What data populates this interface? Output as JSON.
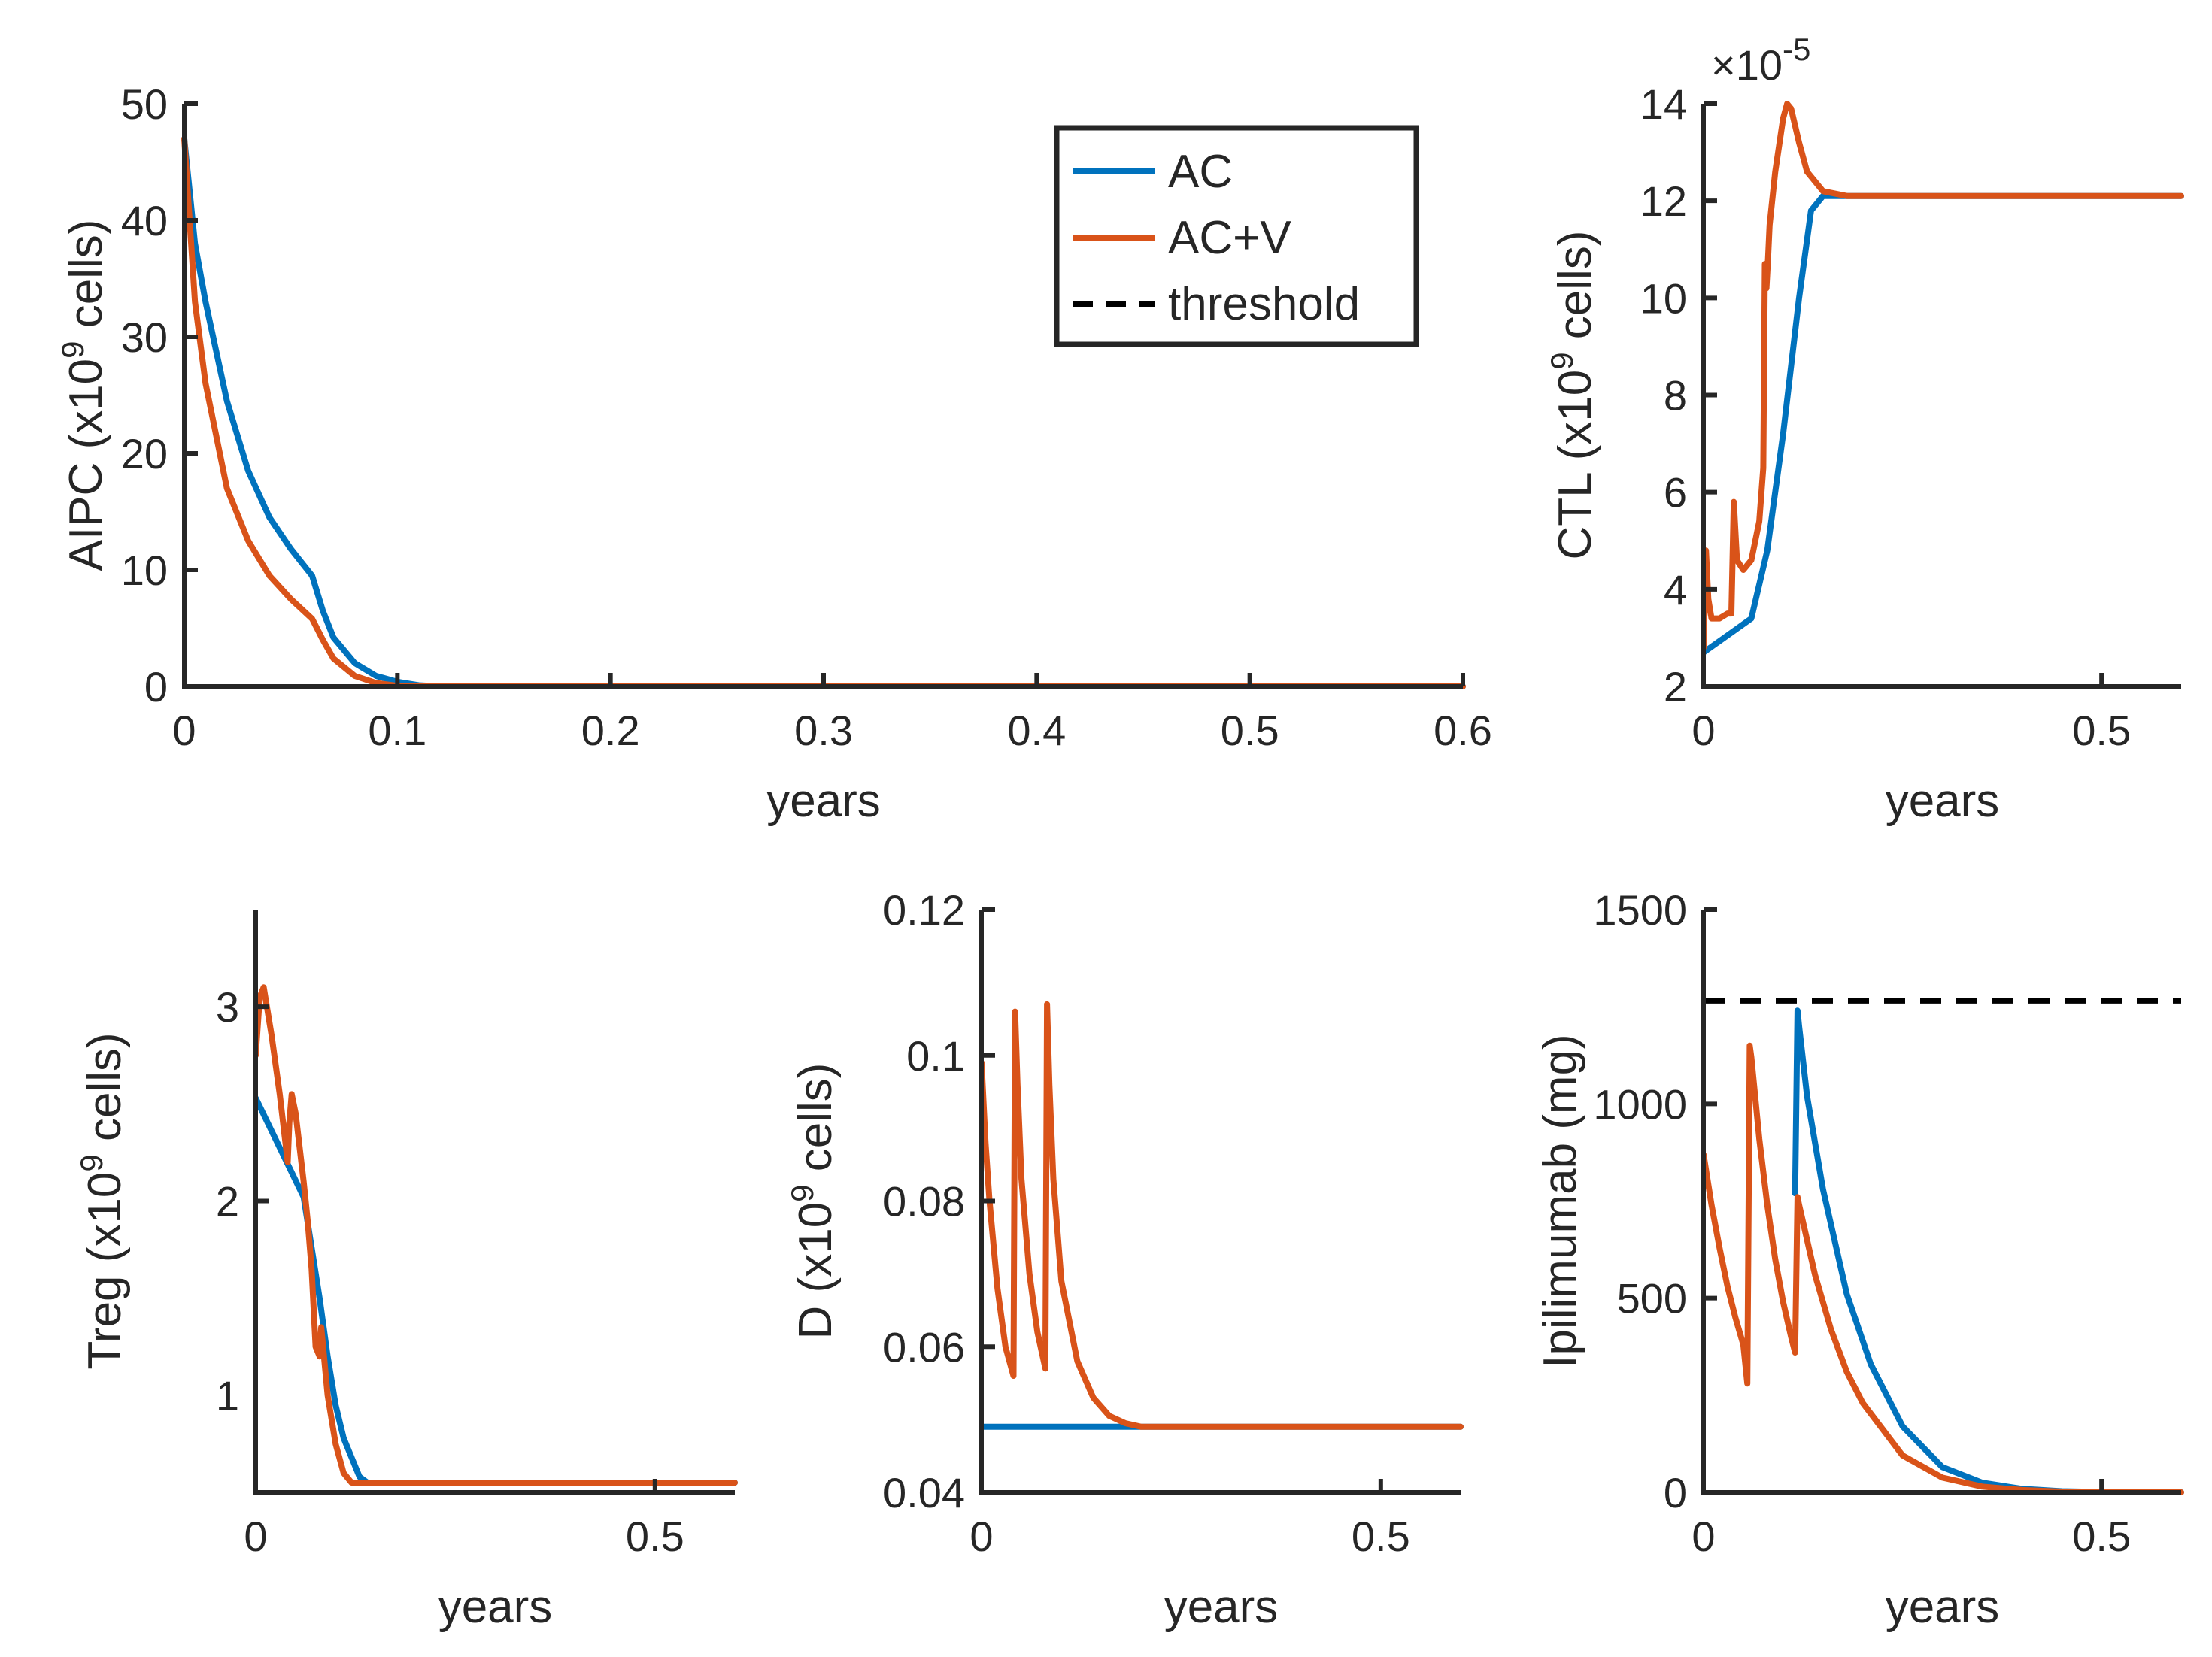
{
  "colors": {
    "ac": "#0072BD",
    "acv": "#D95319",
    "threshold": "#000000",
    "axis": "#262626"
  },
  "legend": {
    "items": [
      {
        "label": "AC",
        "style": "solid",
        "color": "#0072BD"
      },
      {
        "label": "AC+V",
        "style": "solid",
        "color": "#D95319"
      },
      {
        "label": "threshold",
        "style": "dashed",
        "color": "#000000"
      }
    ]
  },
  "chart_data": [
    {
      "id": "aipc",
      "type": "line",
      "xlabel": "years",
      "ylabel": "AIPC (x10",
      "ylabel_sup": "9",
      "ylabel_tail": " cells)",
      "xlim": [
        0,
        0.6
      ],
      "ylim": [
        0,
        50
      ],
      "xticks": [
        0,
        0.1,
        0.2,
        0.3,
        0.4,
        0.5,
        0.6
      ],
      "xtick_labels": [
        "0",
        "0.1",
        "0.2",
        "0.3",
        "0.4",
        "0.5",
        "0.6"
      ],
      "yticks": [
        0,
        10,
        20,
        30,
        40,
        50
      ],
      "ytick_labels": [
        "0",
        "10",
        "20",
        "30",
        "40",
        "50"
      ],
      "series": [
        {
          "name": "AC",
          "color": "#0072BD",
          "x": [
            0,
            0.005,
            0.01,
            0.02,
            0.03,
            0.04,
            0.05,
            0.06,
            0.065,
            0.07,
            0.08,
            0.09,
            0.1,
            0.11,
            0.12,
            0.6
          ],
          "y": [
            47,
            38,
            33,
            24.5,
            18.5,
            14.5,
            11.8,
            9.5,
            6.5,
            4.2,
            2,
            0.9,
            0.4,
            0.1,
            0,
            0
          ]
        },
        {
          "name": "AC+V",
          "color": "#D95319",
          "x": [
            0,
            0.005,
            0.01,
            0.02,
            0.03,
            0.04,
            0.05,
            0.06,
            0.065,
            0.07,
            0.08,
            0.09,
            0.1,
            0.11,
            0.6
          ],
          "y": [
            47,
            33,
            26,
            17,
            12.5,
            9.5,
            7.5,
            5.8,
            4,
            2.4,
            0.9,
            0.3,
            0.05,
            0,
            0
          ]
        }
      ]
    },
    {
      "id": "ctl",
      "type": "line",
      "xlabel": "years",
      "ylabel": "CTL (x10",
      "ylabel_sup": "9",
      "ylabel_tail": " cells)",
      "exponent_base": "×10",
      "exponent": "-5",
      "xlim": [
        0,
        0.6
      ],
      "ylim": [
        2,
        14
      ],
      "xticks": [
        0,
        0.5
      ],
      "xtick_labels": [
        "0",
        "0.5"
      ],
      "yticks": [
        2,
        4,
        6,
        8,
        10,
        12,
        14
      ],
      "ytick_labels": [
        "2",
        "4",
        "6",
        "8",
        "10",
        "12",
        "14"
      ],
      "series": [
        {
          "name": "AC",
          "color": "#0072BD",
          "x": [
            0,
            0.06,
            0.08,
            0.1,
            0.12,
            0.135,
            0.15,
            0.17,
            0.6
          ],
          "y": [
            2.7,
            3.4,
            4.8,
            7.2,
            10,
            11.8,
            12.1,
            12.1,
            12.1
          ]
        },
        {
          "name": "AC+V",
          "color": "#D95319",
          "x": [
            0,
            0.003,
            0.006,
            0.01,
            0.02,
            0.03,
            0.035,
            0.038,
            0.042,
            0.05,
            0.06,
            0.07,
            0.075,
            0.077,
            0.079,
            0.081,
            0.083,
            0.09,
            0.1,
            0.105,
            0.11,
            0.12,
            0.13,
            0.15,
            0.18,
            0.22,
            0.6
          ],
          "y": [
            2.8,
            4.8,
            3.8,
            3.4,
            3.4,
            3.5,
            3.5,
            5.8,
            4.6,
            4.4,
            4.6,
            5.4,
            6.5,
            10.7,
            10.2,
            10.8,
            11.5,
            12.6,
            13.7,
            14,
            13.9,
            13.2,
            12.6,
            12.2,
            12.1,
            12.1,
            12.1
          ]
        }
      ]
    },
    {
      "id": "treg",
      "type": "line",
      "xlabel": "years",
      "ylabel": "Treg (x10",
      "ylabel_sup": "9",
      "ylabel_tail": " cells)",
      "xlim": [
        0,
        0.6
      ],
      "ylim": [
        0.5,
        3.5
      ],
      "xticks": [
        0,
        0.5
      ],
      "xtick_labels": [
        "0",
        "0.5"
      ],
      "yticks": [
        1,
        2,
        3
      ],
      "ytick_labels": [
        "1",
        "2",
        "3"
      ],
      "series": [
        {
          "name": "AC",
          "color": "#0072BD",
          "x": [
            0,
            0.06,
            0.08,
            0.09,
            0.1,
            0.11,
            0.12,
            0.13,
            0.14,
            0.6
          ],
          "y": [
            2.53,
            2.02,
            1.5,
            1.2,
            0.95,
            0.78,
            0.68,
            0.58,
            0.55,
            0.55
          ]
        },
        {
          "name": "AC+V",
          "color": "#D95319",
          "x": [
            0,
            0.005,
            0.01,
            0.02,
            0.03,
            0.04,
            0.042,
            0.045,
            0.05,
            0.06,
            0.065,
            0.07,
            0.075,
            0.08,
            0.082,
            0.09,
            0.1,
            0.11,
            0.12,
            0.6
          ],
          "y": [
            2.75,
            3.05,
            3.1,
            2.85,
            2.55,
            2.2,
            2.4,
            2.55,
            2.45,
            2.1,
            1.9,
            1.65,
            1.25,
            1.2,
            1.35,
            1.0,
            0.75,
            0.6,
            0.55,
            0.55
          ]
        }
      ]
    },
    {
      "id": "d",
      "type": "line",
      "xlabel": "years",
      "ylabel": "D (x10",
      "ylabel_sup": "9",
      "ylabel_tail": " cells)",
      "xlim": [
        0,
        0.6
      ],
      "ylim": [
        0.04,
        0.12
      ],
      "xticks": [
        0,
        0.5
      ],
      "xtick_labels": [
        "0",
        "0.5"
      ],
      "yticks": [
        0.04,
        0.06,
        0.08,
        0.1,
        0.12
      ],
      "ytick_labels": [
        "0.04",
        "0.06",
        "0.08",
        "0.1",
        "0.12"
      ],
      "series": [
        {
          "name": "AC",
          "color": "#0072BD",
          "x": [
            0,
            0.6
          ],
          "y": [
            0.049,
            0.049
          ]
        },
        {
          "name": "AC+V",
          "color": "#D95319",
          "x": [
            0,
            0.005,
            0.01,
            0.02,
            0.03,
            0.04,
            0.042,
            0.045,
            0.05,
            0.06,
            0.07,
            0.08,
            0.082,
            0.085,
            0.09,
            0.1,
            0.12,
            0.14,
            0.16,
            0.18,
            0.2,
            0.22,
            0.6
          ],
          "y": [
            0.099,
            0.088,
            0.08,
            0.068,
            0.06,
            0.056,
            0.106,
            0.096,
            0.083,
            0.07,
            0.062,
            0.057,
            0.107,
            0.096,
            0.083,
            0.069,
            0.058,
            0.053,
            0.0505,
            0.0495,
            0.049,
            0.049,
            0.049
          ]
        }
      ]
    },
    {
      "id": "ipilimumab",
      "type": "line",
      "xlabel": "years",
      "ylabel": "Ipilimumab (mg)",
      "xlim": [
        0,
        0.6
      ],
      "ylim": [
        0,
        1500
      ],
      "xticks": [
        0,
        0.5
      ],
      "xtick_labels": [
        "0",
        "0.5"
      ],
      "yticks": [
        0,
        500,
        1000,
        1500
      ],
      "ytick_labels": [
        "0",
        "500",
        "1000",
        "1500"
      ],
      "threshold": 1265,
      "series": [
        {
          "name": "AC",
          "color": "#0072BD",
          "x": [
            0.115,
            0.118,
            0.12,
            0.13,
            0.15,
            0.18,
            0.21,
            0.25,
            0.3,
            0.35,
            0.4,
            0.45,
            0.5,
            0.6
          ],
          "y": [
            770,
            1240,
            1200,
            1020,
            780,
            510,
            330,
            170,
            65,
            25,
            9,
            3,
            1,
            0
          ]
        },
        {
          "name": "AC+V",
          "color": "#D95319",
          "x": [
            0,
            0.01,
            0.02,
            0.03,
            0.04,
            0.05,
            0.055,
            0.058,
            0.06,
            0.07,
            0.08,
            0.09,
            0.1,
            0.11,
            0.115,
            0.118,
            0.12,
            0.14,
            0.16,
            0.18,
            0.2,
            0.25,
            0.3,
            0.35,
            0.4,
            0.45,
            0.5,
            0.6
          ],
          "y": [
            870,
            740,
            630,
            530,
            450,
            380,
            280,
            1150,
            1120,
            910,
            740,
            600,
            490,
            400,
            360,
            760,
            740,
            560,
            420,
            310,
            230,
            95,
            38,
            15,
            6,
            2,
            1,
            0
          ]
        }
      ]
    }
  ]
}
